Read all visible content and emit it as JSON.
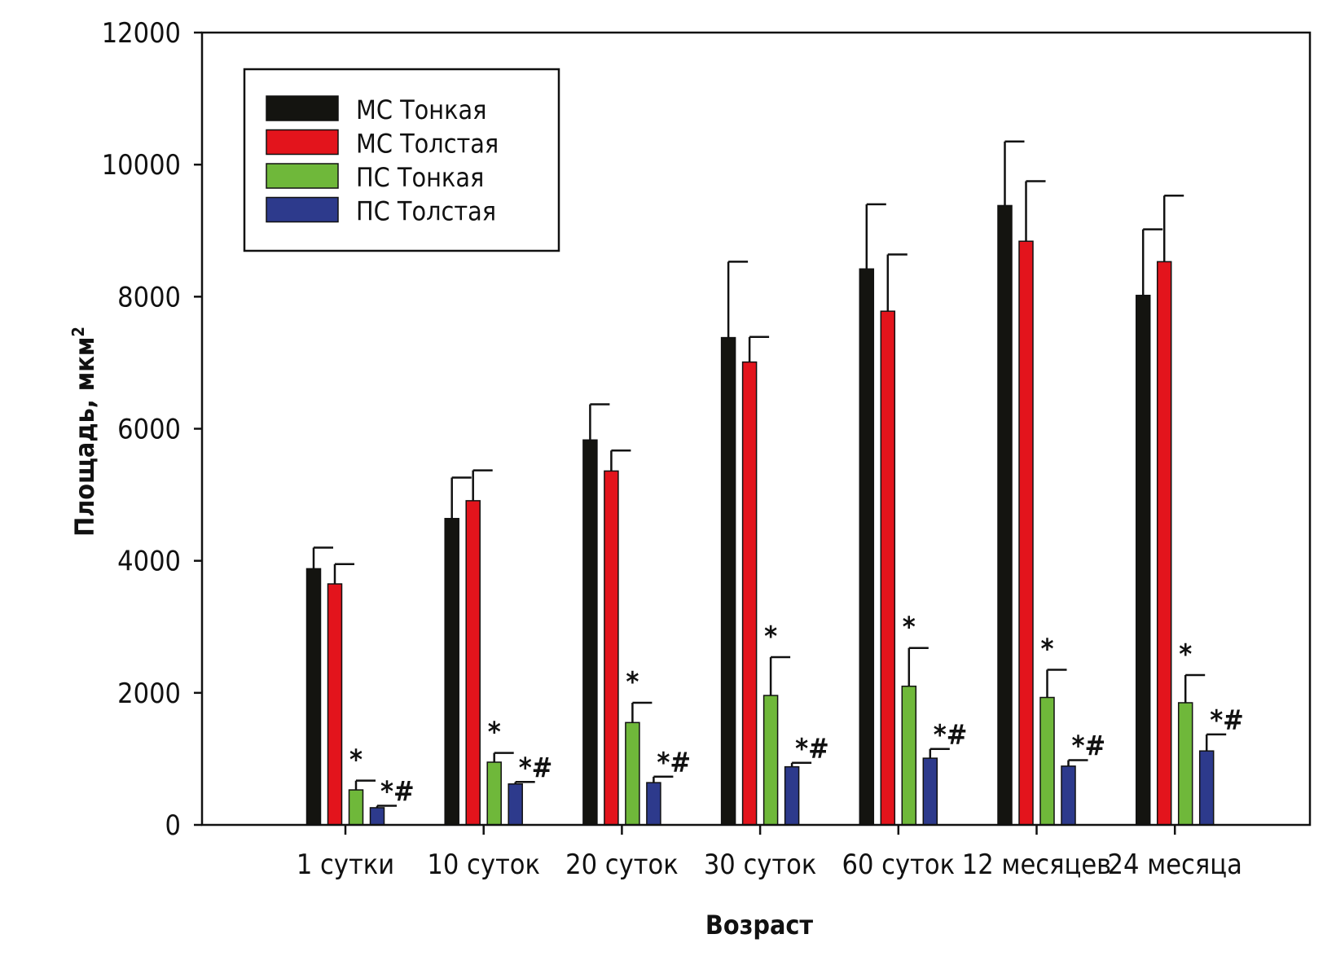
{
  "chart_data": {
    "type": "bar",
    "xlabel": "Возраст",
    "ylabel_main": "Площадь, мкм",
    "ylabel_sup": "2",
    "ylim": [
      0,
      12000
    ],
    "yticks": [
      0,
      2000,
      4000,
      6000,
      8000,
      10000,
      12000
    ],
    "ytick_labels": [
      "0",
      "2000",
      "4000",
      "6000",
      "8000",
      "10000",
      "12000"
    ],
    "grid": false,
    "legend_position": "top-left",
    "categories": [
      "1 сутки",
      "10 суток",
      "20 суток",
      "30 суток",
      "60 суток",
      "12 месяцев",
      "24 месяца"
    ],
    "series": [
      {
        "name": "МС Тонкая",
        "color": "#141410",
        "values": [
          3880,
          4640,
          5830,
          7380,
          8420,
          9380,
          8020
        ],
        "errors": [
          320,
          620,
          540,
          1150,
          980,
          970,
          1000
        ],
        "annotations": [
          "",
          "",
          "",
          "",
          "",
          "",
          ""
        ]
      },
      {
        "name": "МС Толстая",
        "color": "#e3141c",
        "values": [
          3650,
          4910,
          5360,
          7010,
          7780,
          8840,
          8530
        ],
        "errors": [
          300,
          460,
          310,
          380,
          860,
          910,
          1000
        ],
        "annotations": [
          "",
          "",
          "",
          "",
          "",
          "",
          ""
        ]
      },
      {
        "name": "ПС Тонкая",
        "color": "#6fb83a",
        "values": [
          530,
          950,
          1550,
          1960,
          2100,
          1930,
          1850
        ],
        "errors": [
          140,
          140,
          300,
          580,
          580,
          420,
          420
        ],
        "annotations": [
          "*",
          "*",
          "*",
          "*",
          "*",
          "*",
          "*"
        ]
      },
      {
        "name": "ПС Толстая",
        "color": "#2d3a8c",
        "values": [
          260,
          620,
          640,
          880,
          1010,
          890,
          1120
        ],
        "errors": [
          30,
          30,
          90,
          60,
          140,
          90,
          250
        ],
        "annotations": [
          "*#",
          "*#",
          "*#",
          "*#",
          "*#",
          "*#",
          "*#"
        ]
      }
    ]
  }
}
